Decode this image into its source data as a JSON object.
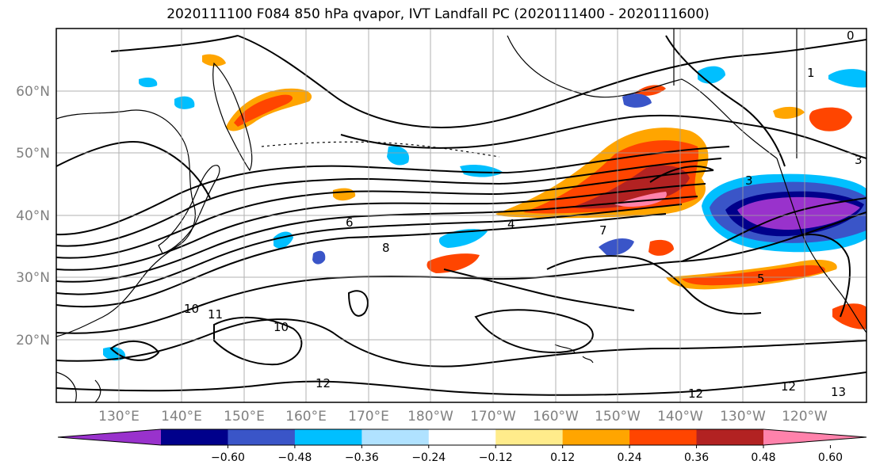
{
  "title": "2020111100 F084 850 hPa qvapor, IVT Landfall PC (2020111400 - 2020111600)",
  "map": {
    "lat_labels": [
      "60°N",
      "50°N",
      "40°N",
      "30°N",
      "20°N"
    ],
    "lon_labels": [
      "130°E",
      "140°E",
      "150°E",
      "160°E",
      "170°E",
      "180°W",
      "170°W",
      "160°W",
      "150°W",
      "140°W",
      "130°W",
      "120°W"
    ],
    "contour_labels": [
      "6",
      "8",
      "10",
      "11",
      "10",
      "12",
      "4",
      "7",
      "5",
      "3",
      "1",
      "0",
      "3",
      "12",
      "12",
      "13"
    ],
    "grid": true
  },
  "colorbar": {
    "ticks": [
      "−0.60",
      "−0.48",
      "−0.36",
      "−0.24",
      "−0.12",
      "0.12",
      "0.24",
      "0.36",
      "0.48",
      "0.60"
    ],
    "colors": [
      "#9932cc",
      "#00008b",
      "#3a55c8",
      "#00bfff",
      "#b0e2ff",
      "#ffffff",
      "#ffec8b",
      "#ffa500",
      "#ff4500",
      "#b22222",
      "#ff82ab"
    ]
  }
}
